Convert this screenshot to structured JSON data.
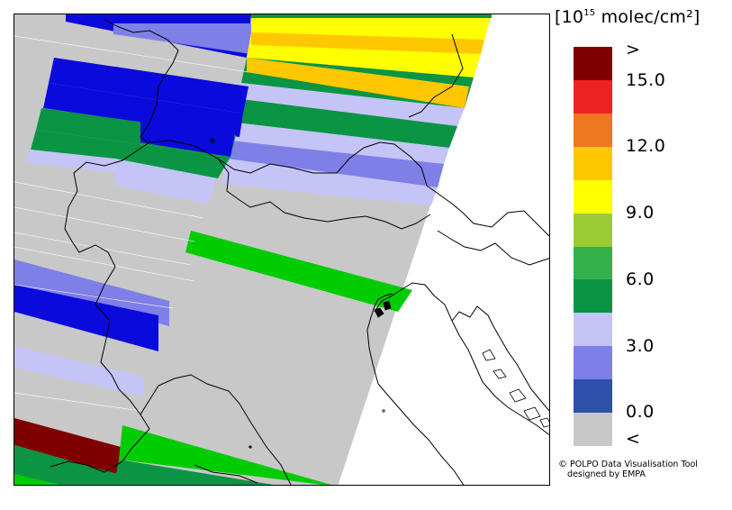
{
  "legend": {
    "title_prefix": "[10",
    "title_exponent": "15",
    "title_suffix": " molec/cm²]",
    "colors": [
      "#7f0000",
      "#ee2222",
      "#ee7722",
      "#ffc700",
      "#ffff00",
      "#99cc33",
      "#33b24c",
      "#0b9444",
      "#c4c4f6",
      "#7f7fe8",
      "#2e4faa",
      "#c8c8c8"
    ],
    "tick_labels": [
      ">",
      "15.0",
      "12.0",
      "9.0",
      "6.0",
      "3.0",
      "0.0",
      "<"
    ]
  },
  "credit": {
    "symbol": "©",
    "line1": "POLPO Data Visualisation Tool",
    "line2": "designed by EMPA"
  }
}
